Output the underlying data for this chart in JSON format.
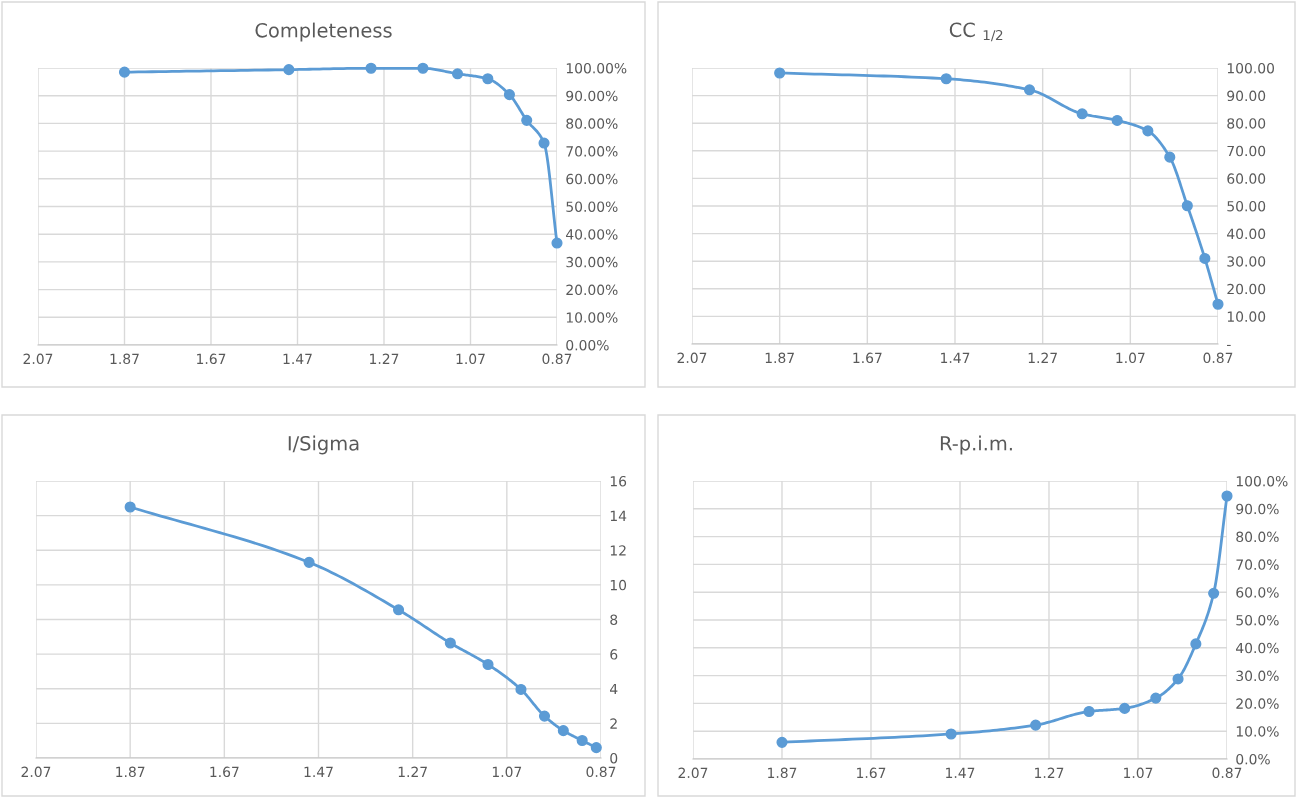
{
  "chart_data": [
    {
      "type": "line",
      "title": "Completeness",
      "x": [
        1.87,
        1.49,
        1.3,
        1.18,
        1.1,
        1.03,
        0.98,
        0.94,
        0.9,
        0.87
      ],
      "series": [
        {
          "color": "#5b9bd5",
          "values": [
            98.5,
            99.4,
            99.9,
            99.9,
            97.9,
            96.1,
            90.4,
            81.1,
            72.9,
            36.8
          ]
        }
      ],
      "xlim": [
        2.07,
        0.87
      ],
      "xticks": [
        2.07,
        1.87,
        1.67,
        1.47,
        1.27,
        1.07,
        0.87
      ],
      "ylim": [
        0,
        100
      ],
      "yticks": [
        {
          "value": 0,
          "label": "0.00%"
        },
        {
          "value": 10,
          "label": "10.00%"
        },
        {
          "value": 20,
          "label": "20.00%"
        },
        {
          "value": 30,
          "label": "30.00%"
        },
        {
          "value": 40,
          "label": "40.00%"
        },
        {
          "value": 50,
          "label": "50.00%"
        },
        {
          "value": 60,
          "label": "60.00%"
        },
        {
          "value": 70,
          "label": "70.00%"
        },
        {
          "value": 80,
          "label": "80.00%"
        },
        {
          "value": 90,
          "label": "90.00%"
        },
        {
          "value": 100,
          "label": "100.00%"
        }
      ],
      "grid": true,
      "marker": "circle",
      "line_style": "solid"
    },
    {
      "type": "line",
      "title": "CC $_{1/2}$",
      "x": [
        1.87,
        1.49,
        1.3,
        1.18,
        1.1,
        1.03,
        0.98,
        0.94,
        0.9,
        0.87
      ],
      "series": [
        {
          "color": "#5b9bd5",
          "values": [
            98.2,
            96.1,
            92.1,
            83.4,
            81.0,
            77.2,
            67.7,
            50.1,
            31.0,
            14.4
          ]
        }
      ],
      "xlim": [
        2.07,
        0.87
      ],
      "xticks": [
        2.07,
        1.87,
        1.67,
        1.47,
        1.27,
        1.07,
        0.87
      ],
      "ylim": [
        0,
        100
      ],
      "yticks": [
        {
          "value": 0,
          "label": "-"
        },
        {
          "value": 10,
          "label": "10.00"
        },
        {
          "value": 20,
          "label": "20.00"
        },
        {
          "value": 30,
          "label": "30.00"
        },
        {
          "value": 40,
          "label": "40.00"
        },
        {
          "value": 50,
          "label": "50.00"
        },
        {
          "value": 60,
          "label": "60.00"
        },
        {
          "value": 70,
          "label": "70.00"
        },
        {
          "value": 80,
          "label": "80.00"
        },
        {
          "value": 90,
          "label": "90.00"
        },
        {
          "value": 100,
          "label": "100.00"
        }
      ],
      "grid": true,
      "marker": "circle",
      "line_style": "solid"
    },
    {
      "type": "line",
      "title": "I/Sigma",
      "x": [
        1.87,
        1.49,
        1.3,
        1.19,
        1.11,
        1.04,
        0.99,
        0.95,
        0.91,
        0.88
      ],
      "series": [
        {
          "color": "#5b9bd5",
          "values": [
            14.5,
            11.3,
            8.56,
            6.64,
            5.4,
            3.96,
            2.42,
            1.58,
            1.01,
            0.6
          ]
        }
      ],
      "xlim": [
        2.07,
        0.87
      ],
      "xticks": [
        2.07,
        1.87,
        1.67,
        1.47,
        1.27,
        1.07,
        0.87
      ],
      "ylim": [
        0,
        16
      ],
      "yticks": [
        0,
        2,
        4,
        6,
        8,
        10,
        12,
        14,
        16
      ],
      "grid": true,
      "marker": "circle",
      "line_style": "solid"
    },
    {
      "type": "line",
      "title": "R-p.i.m.",
      "x": [
        1.87,
        1.49,
        1.3,
        1.18,
        1.1,
        1.03,
        0.98,
        0.94,
        0.9,
        0.87
      ],
      "series": [
        {
          "color": "#5b9bd5",
          "values": [
            6.0,
            9.0,
            12.2,
            17.1,
            18.2,
            21.9,
            28.8,
            41.4,
            59.6,
            94.6
          ]
        }
      ],
      "xlim": [
        2.07,
        0.87
      ],
      "xticks": [
        2.07,
        1.87,
        1.67,
        1.47,
        1.27,
        1.07,
        0.87
      ],
      "ylim": [
        0,
        100
      ],
      "yticks": [
        {
          "value": 0,
          "label": "0.0%"
        },
        {
          "value": 10,
          "label": "10.0%"
        },
        {
          "value": 20,
          "label": "20.0%"
        },
        {
          "value": 30,
          "label": "30.0%"
        },
        {
          "value": 40,
          "label": "40.0%"
        },
        {
          "value": 50,
          "label": "50.0%"
        },
        {
          "value": 60,
          "label": "60.0%"
        },
        {
          "value": 70,
          "label": "70.0%"
        },
        {
          "value": 80,
          "label": "80.0%"
        },
        {
          "value": 90,
          "label": "90.0%"
        },
        {
          "value": 100,
          "label": "100.0%"
        }
      ],
      "grid": true,
      "marker": "circle",
      "line_style": "solid"
    }
  ]
}
